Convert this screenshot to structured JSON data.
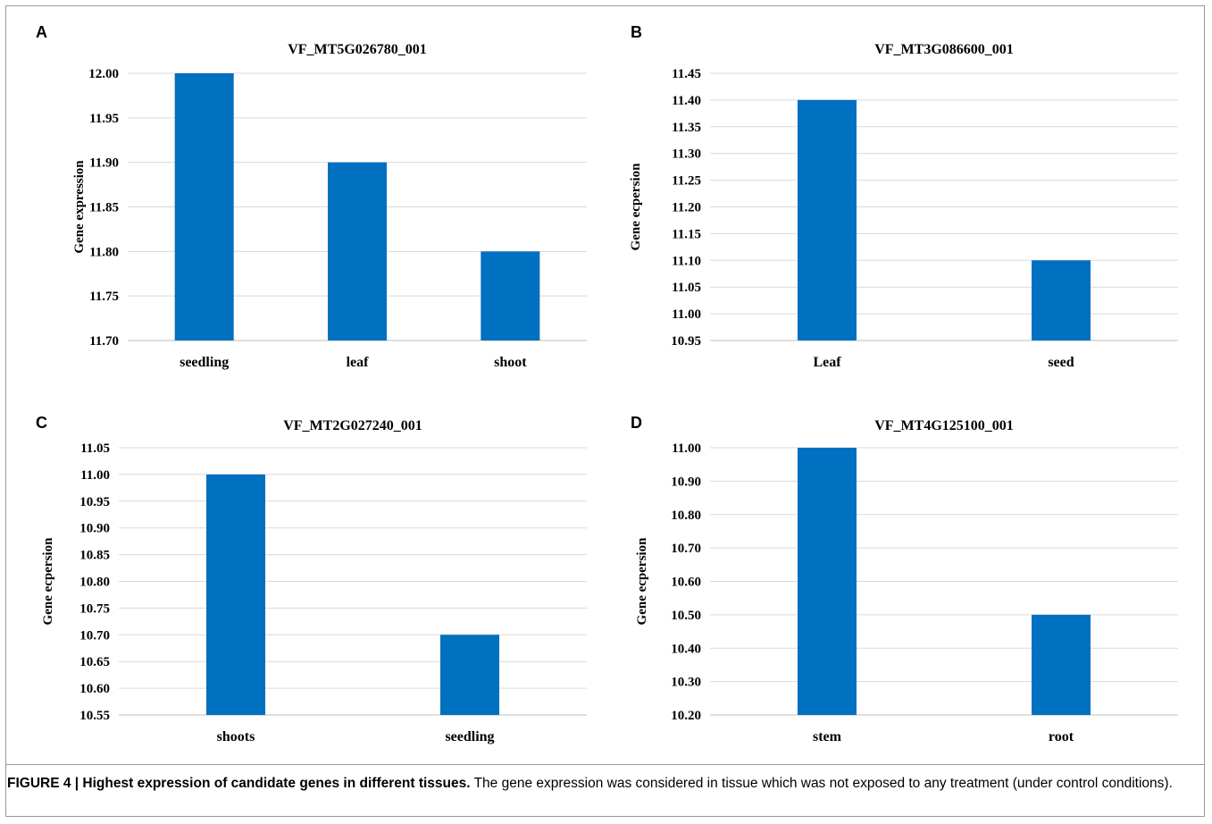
{
  "colors": {
    "bar": "#0070c0",
    "grid": "#d9d9d9",
    "text": "#000000"
  },
  "chart_data": [
    {
      "panel": "A",
      "type": "bar",
      "title": "VF_MT5G026780_001",
      "ylabel": "Gene expression",
      "xlabel": "",
      "categories": [
        "seedling",
        "leaf",
        "shoot"
      ],
      "values": [
        12.0,
        11.9,
        11.8
      ],
      "ylim": [
        11.7,
        12.0
      ],
      "yticks": [
        "11.70",
        "11.75",
        "11.80",
        "11.85",
        "11.90",
        "11.95",
        "12.00"
      ],
      "grid": true,
      "legend": "none"
    },
    {
      "panel": "B",
      "type": "bar",
      "title": "VF_MT3G086600_001",
      "ylabel": "Gene ecpersion",
      "xlabel": "",
      "categories": [
        "Leaf",
        "seed"
      ],
      "values": [
        11.4,
        11.1
      ],
      "ylim": [
        10.95,
        11.45
      ],
      "yticks": [
        "10.95",
        "11.00",
        "11.05",
        "11.10",
        "11.15",
        "11.20",
        "11.25",
        "11.30",
        "11.35",
        "11.40",
        "11.45"
      ],
      "grid": true,
      "legend": "none"
    },
    {
      "panel": "C",
      "type": "bar",
      "title": "VF_MT2G027240_001",
      "ylabel": "Gene ecpersion",
      "xlabel": "",
      "categories": [
        "shoots",
        "seedling"
      ],
      "values": [
        11.0,
        10.7
      ],
      "ylim": [
        10.55,
        11.05
      ],
      "yticks": [
        "10.55",
        "10.60",
        "10.65",
        "10.70",
        "10.75",
        "10.80",
        "10.85",
        "10.90",
        "10.95",
        "11.00",
        "11.05"
      ],
      "grid": true,
      "legend": "none"
    },
    {
      "panel": "D",
      "type": "bar",
      "title": "VF_MT4G125100_001",
      "ylabel": "Gene ecpersion",
      "xlabel": "",
      "categories": [
        "stem",
        "root"
      ],
      "values": [
        11.0,
        10.5
      ],
      "ylim": [
        10.2,
        11.0
      ],
      "yticks": [
        "10.20",
        "10.30",
        "10.40",
        "10.50",
        "10.60",
        "10.70",
        "10.80",
        "10.90",
        "11.00"
      ],
      "grid": true,
      "legend": "none"
    }
  ],
  "caption": {
    "bold": "FIGURE 4 | Highest expression of candidate genes in different tissues.",
    "text": " The gene expression was considered in tissue which was not exposed to any treatment (under control conditions)."
  }
}
